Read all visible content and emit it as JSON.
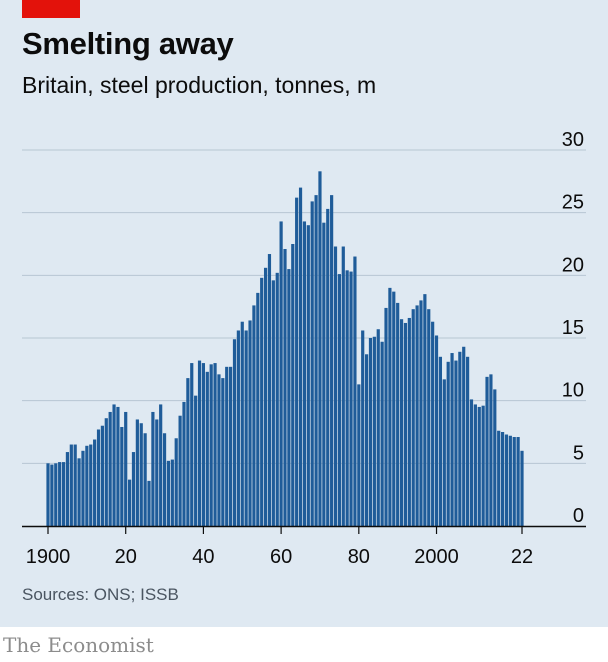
{
  "header": {
    "title": "Smelting away",
    "subtitle": "Britain, steel production, tonnes, m"
  },
  "footer": {
    "source": "Sources: ONS; ISSB",
    "brand": "The Economist"
  },
  "colors": {
    "bar": "#1f5c99",
    "panel_background": "#dfe9f2",
    "accent_red": "#e3120b",
    "gridline": "#b7c6d3",
    "axis": "#0c0c0c"
  },
  "chart_data": {
    "type": "bar",
    "title": "Smelting away",
    "subtitle": "Britain, steel production, tonnes, m",
    "xlabel": "",
    "ylabel": "",
    "ylim": [
      0,
      30
    ],
    "y_ticks": [
      0,
      5,
      10,
      15,
      20,
      25,
      30
    ],
    "y_tick_labels": [
      "0",
      "5",
      "10",
      "15",
      "20",
      "25",
      "30"
    ],
    "y_axis_side": "right",
    "x_ticks": [
      1900,
      1920,
      1940,
      1960,
      1980,
      2000,
      2022
    ],
    "x_tick_labels": [
      "1900",
      "20",
      "40",
      "60",
      "80",
      "2000",
      "22"
    ],
    "grid": true,
    "legend": "none",
    "x": [
      1900,
      1901,
      1902,
      1903,
      1904,
      1905,
      1906,
      1907,
      1908,
      1909,
      1910,
      1911,
      1912,
      1913,
      1914,
      1915,
      1916,
      1917,
      1918,
      1919,
      1920,
      1921,
      1922,
      1923,
      1924,
      1925,
      1926,
      1927,
      1928,
      1929,
      1930,
      1931,
      1932,
      1933,
      1934,
      1935,
      1936,
      1937,
      1938,
      1939,
      1940,
      1941,
      1942,
      1943,
      1944,
      1945,
      1946,
      1947,
      1948,
      1949,
      1950,
      1951,
      1952,
      1953,
      1954,
      1955,
      1956,
      1957,
      1958,
      1959,
      1960,
      1961,
      1962,
      1963,
      1964,
      1965,
      1966,
      1967,
      1968,
      1969,
      1970,
      1971,
      1972,
      1973,
      1974,
      1975,
      1976,
      1977,
      1978,
      1979,
      1980,
      1981,
      1982,
      1983,
      1984,
      1985,
      1986,
      1987,
      1988,
      1989,
      1990,
      1991,
      1992,
      1993,
      1994,
      1995,
      1996,
      1997,
      1998,
      1999,
      2000,
      2001,
      2002,
      2003,
      2004,
      2005,
      2006,
      2007,
      2008,
      2009,
      2010,
      2011,
      2012,
      2013,
      2014,
      2015,
      2016,
      2017,
      2018,
      2019,
      2020,
      2021,
      2022
    ],
    "values": [
      5.0,
      4.9,
      5.0,
      5.1,
      5.1,
      5.9,
      6.5,
      6.5,
      5.4,
      6.0,
      6.4,
      6.5,
      6.9,
      7.7,
      8.0,
      8.6,
      9.1,
      9.7,
      9.5,
      7.9,
      9.1,
      3.7,
      5.9,
      8.5,
      8.2,
      7.4,
      3.6,
      9.1,
      8.5,
      9.7,
      7.4,
      5.2,
      5.3,
      7.0,
      8.8,
      9.9,
      11.8,
      13.0,
      10.4,
      13.2,
      13.0,
      12.3,
      12.9,
      13.0,
      12.1,
      11.8,
      12.7,
      12.7,
      14.9,
      15.6,
      16.3,
      15.6,
      16.4,
      17.6,
      18.6,
      19.8,
      20.6,
      21.7,
      19.6,
      20.2,
      24.3,
      22.1,
      20.5,
      22.5,
      26.2,
      27.0,
      24.3,
      24.0,
      25.9,
      26.4,
      28.3,
      24.2,
      25.3,
      26.4,
      22.3,
      20.1,
      22.3,
      20.4,
      20.3,
      21.5,
      11.3,
      15.6,
      13.7,
      15.0,
      15.1,
      15.7,
      14.7,
      17.4,
      19.0,
      18.7,
      17.8,
      16.5,
      16.2,
      16.6,
      17.3,
      17.6,
      18.0,
      18.5,
      17.3,
      16.3,
      15.2,
      13.5,
      11.7,
      13.1,
      13.8,
      13.2,
      13.9,
      14.3,
      13.5,
      10.1,
      9.7,
      9.5,
      9.6,
      11.9,
      12.1,
      10.9,
      7.6,
      7.5,
      7.3,
      7.2,
      7.1,
      7.1,
      6.0
    ]
  }
}
